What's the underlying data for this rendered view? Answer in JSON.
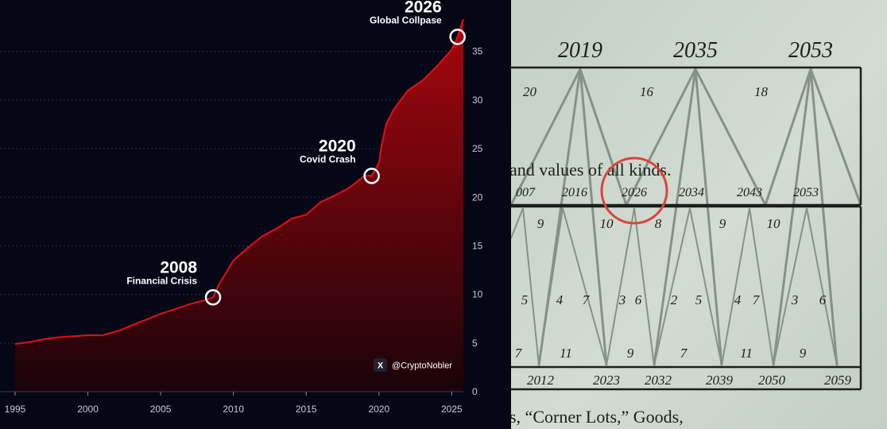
{
  "left_chart": {
    "watermark": "@CryptoNobler",
    "watermark_icon": "x-logo-icon",
    "colors": {
      "background": "#050716",
      "line": "#d4101a",
      "fill_top": "#a8060d",
      "fill_bottom": "#1a0309",
      "text": "#ffffff"
    },
    "annotations": [
      {
        "year": "2008",
        "label": "Financial Crisis",
        "x": 2008.6,
        "y": 9.7
      },
      {
        "year": "2020",
        "label": "Covid Crash",
        "x": 2019.5,
        "y": 22.2
      },
      {
        "year": "2026",
        "label": "Global Collpase",
        "x": 2025.4,
        "y": 36.5
      }
    ]
  },
  "right_panel": {
    "top_years": [
      "2019",
      "2035",
      "2053"
    ],
    "upper_numbers": [
      "20",
      "16",
      "18"
    ],
    "middle_text": "and values of all kinds.",
    "middle_years": [
      "007",
      "2016",
      "2026",
      "2034",
      "2043",
      "2053"
    ],
    "lower_numbers": [
      "9",
      "10",
      "8",
      "9",
      "10",
      "5",
      "4",
      "7",
      "3",
      "6",
      "2",
      "5",
      "4",
      "7",
      "3",
      "6",
      "7",
      "11",
      "9",
      "7",
      "11",
      "9"
    ],
    "bottom_years": [
      "2012",
      "2023",
      "2032",
      "2039",
      "2050",
      "2059"
    ],
    "bottom_text": "s, “Corner Lots,” Goods,",
    "colors": {
      "paper": "#cbd6cc",
      "ink": "#1d1f1d",
      "highlight_circle": "#d9453a",
      "lines": "#7f8a80"
    }
  },
  "chart_data": {
    "type": "area",
    "title": "",
    "xlabel": "",
    "ylabel": "",
    "xlim": [
      1995,
      2025.8
    ],
    "ylim": [
      0,
      38
    ],
    "x_ticks": [
      "1995",
      "2000",
      "2005",
      "2010",
      "2015",
      "2020",
      "2025"
    ],
    "y_ticks": [
      "0",
      "5",
      "10",
      "15",
      "20",
      "25",
      "30",
      "35"
    ],
    "grid": true,
    "y_axis_position": "right",
    "series": [
      {
        "x": [
          1995,
          1996,
          1997,
          1998,
          1999,
          2000,
          2001,
          2002,
          2003,
          2004,
          2005,
          2006,
          2007,
          2008,
          2008.6,
          2009,
          2010,
          2011,
          2012,
          2013,
          2014,
          2015,
          2016,
          2017,
          2018,
          2019,
          2019.5,
          2020,
          2020.2,
          2020.5,
          2021,
          2022,
          2023,
          2024,
          2025,
          2025.4,
          2025.8
        ],
        "values": [
          4.9,
          5.1,
          5.4,
          5.6,
          5.7,
          5.8,
          5.8,
          6.2,
          6.8,
          7.4,
          8.0,
          8.5,
          9.0,
          9.4,
          9.7,
          11.0,
          13.5,
          14.8,
          16.0,
          16.8,
          17.8,
          18.2,
          19.5,
          20.2,
          21.0,
          22.2,
          22.2,
          23.5,
          25.5,
          27.5,
          29.0,
          31.0,
          32.0,
          33.5,
          35.2,
          36.5,
          38.3
        ]
      }
    ]
  }
}
